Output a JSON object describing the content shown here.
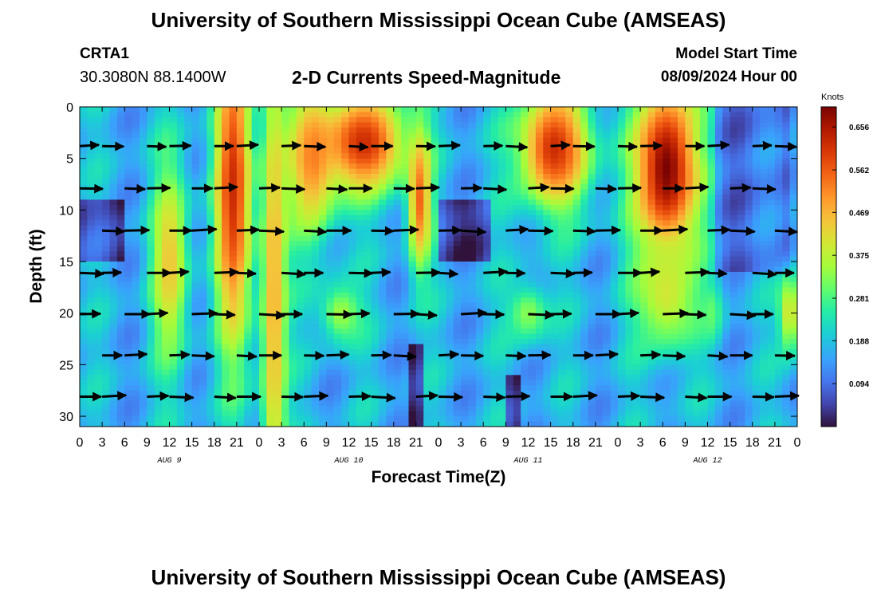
{
  "header": {
    "title": "University of Southern Mississippi Ocean Cube (AMSEAS)",
    "station_id": "CRTA1",
    "station_coords": "30.3080N  88.1400W",
    "plot_title": "2-D Currents Speed-Magnitude",
    "model_start_label": "Model Start Time",
    "model_start_value": "08/09/2024 Hour 00"
  },
  "footer": {
    "title": "University of Southern Mississippi Ocean Cube (AMSEAS)"
  },
  "chart_data": {
    "type": "heatmap",
    "title": "2-D Currents Speed-Magnitude",
    "xlabel": "Forecast Time(Z)",
    "ylabel": "Depth (ft)",
    "x_ticks": [
      "0",
      "3",
      "6",
      "9",
      "12",
      "15",
      "18",
      "21",
      "0",
      "3",
      "6",
      "9",
      "12",
      "15",
      "18",
      "21",
      "0",
      "3",
      "6",
      "9",
      "12",
      "15",
      "18",
      "21",
      "0",
      "3",
      "6",
      "9",
      "12",
      "15",
      "18",
      "21",
      "0"
    ],
    "xlim": [
      0,
      96
    ],
    "date_labels": [
      {
        "hour": 12,
        "label": "AUG 9"
      },
      {
        "hour": 36,
        "label": "AUG 10"
      },
      {
        "hour": 60,
        "label": "AUG 11"
      },
      {
        "hour": 84,
        "label": "AUG 12"
      }
    ],
    "y_ticks": [
      0,
      5,
      10,
      15,
      20,
      25,
      30
    ],
    "ylim": [
      0,
      31
    ],
    "colorbar": {
      "label": "Knots",
      "tick_labels": [
        "0.656",
        "0.562",
        "0.469",
        "0.375",
        "0.281",
        "0.188",
        "0.094"
      ],
      "range": [
        0,
        0.7
      ]
    },
    "arrow_depths_ft": [
      3.8,
      7.9,
      12.0,
      16.1,
      20.1,
      24.1,
      28.1
    ],
    "speed_features": [
      {
        "hour_center": 20.5,
        "hour_width": 2.6,
        "depth_center": 8.0,
        "depth_width": 16,
        "speed": 0.62
      },
      {
        "hour_center": 26.0,
        "hour_width": 1.8,
        "depth_center": 18.0,
        "depth_width": 28,
        "speed": 0.48
      },
      {
        "hour_center": 31.0,
        "hour_width": 3.5,
        "depth_center": 5.0,
        "depth_width": 8,
        "speed": 0.5
      },
      {
        "hour_center": 38.0,
        "hour_width": 6.0,
        "depth_center": 3.5,
        "depth_width": 5,
        "speed": 0.62
      },
      {
        "hour_center": 45.5,
        "hour_width": 1.6,
        "depth_center": 9.0,
        "depth_width": 7,
        "speed": 0.55
      },
      {
        "hour_center": 63.5,
        "hour_width": 5.0,
        "depth_center": 4.0,
        "depth_width": 6,
        "speed": 0.62
      },
      {
        "hour_center": 78.5,
        "hour_width": 4.5,
        "depth_center": 6.0,
        "depth_width": 9,
        "speed": 0.7
      },
      {
        "hour_center": 78.5,
        "hour_width": 4.5,
        "depth_center": 18.0,
        "depth_width": 6,
        "speed": 0.4
      },
      {
        "hour_center": 12.0,
        "hour_width": 2.5,
        "depth_center": 15.0,
        "depth_width": 10,
        "speed": 0.45
      },
      {
        "hour_center": 35.0,
        "hour_width": 3.0,
        "depth_center": 20.0,
        "depth_width": 3,
        "speed": 0.35
      },
      {
        "hour_center": 60.0,
        "hour_width": 3.0,
        "depth_center": 20.0,
        "depth_width": 3,
        "speed": 0.33
      },
      {
        "hour_center": 84.5,
        "hour_width": 1.5,
        "depth_center": 20.0,
        "depth_width": 3,
        "speed": 0.3
      },
      {
        "hour_center": 95.0,
        "hour_width": 1.5,
        "depth_center": 20.0,
        "depth_width": 4,
        "speed": 0.42
      }
    ]
  }
}
